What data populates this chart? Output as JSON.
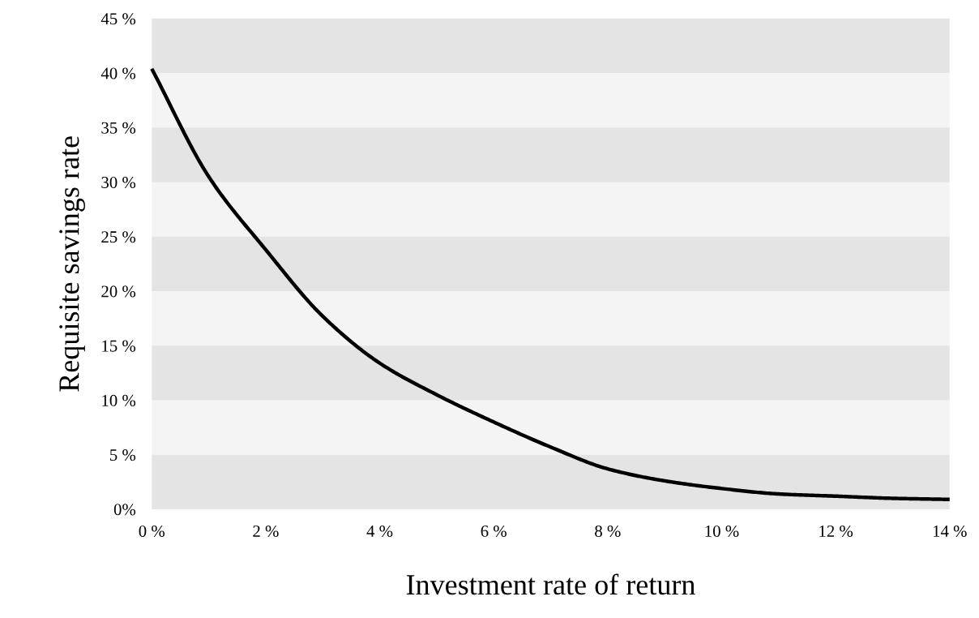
{
  "chart_data": {
    "type": "line",
    "xlabel": "Investment rate of return",
    "ylabel": "Requisite savings rate",
    "x": [
      0,
      1,
      2,
      3,
      4,
      5,
      6,
      7,
      8,
      9,
      10,
      11,
      12,
      13,
      14
    ],
    "series": [
      {
        "color": "#000000",
        "values": [
          40.4,
          30.5,
          23.8,
          17.7,
          13.4,
          10.5,
          8.0,
          5.7,
          3.7,
          2.6,
          1.9,
          1.4,
          1.2,
          1.0,
          0.9
        ]
      }
    ],
    "xlim": [
      0,
      14
    ],
    "xticks": [
      {
        "value": 0,
        "label": "0 %"
      },
      {
        "value": 2,
        "label": "2 %"
      },
      {
        "value": 4,
        "label": "4 %"
      },
      {
        "value": 6,
        "label": "6 %"
      },
      {
        "value": 8,
        "label": "8 %"
      },
      {
        "value": 10,
        "label": "10 %"
      },
      {
        "value": 12,
        "label": "12 %"
      },
      {
        "value": 14,
        "label": "14 %"
      }
    ],
    "ylim": [
      0,
      45
    ],
    "yticks": [
      {
        "value": 0,
        "label": "0%"
      },
      {
        "value": 5,
        "label": "5 %"
      },
      {
        "value": 10,
        "label": "10 %"
      },
      {
        "value": 15,
        "label": "15 %"
      },
      {
        "value": 20,
        "label": "20 %"
      },
      {
        "value": 25,
        "label": "25 %"
      },
      {
        "value": 30,
        "label": "30 %"
      },
      {
        "value": 35,
        "label": "35 %"
      },
      {
        "value": 40,
        "label": "40 %"
      },
      {
        "value": 45,
        "label": "45 %"
      }
    ],
    "bands": [
      {
        "axis": "y",
        "from": 0,
        "to": 5,
        "color": "#e4e4e4"
      },
      {
        "axis": "y",
        "from": 10,
        "to": 15,
        "color": "#e4e4e4"
      },
      {
        "axis": "y",
        "from": 20,
        "to": 25,
        "color": "#e4e4e4"
      },
      {
        "axis": "y",
        "from": 30,
        "to": 35,
        "color": "#e4e4e4"
      },
      {
        "axis": "y",
        "from": 40,
        "to": 45,
        "color": "#e4e4e4"
      }
    ],
    "marker": "none",
    "line_style": "solid"
  }
}
